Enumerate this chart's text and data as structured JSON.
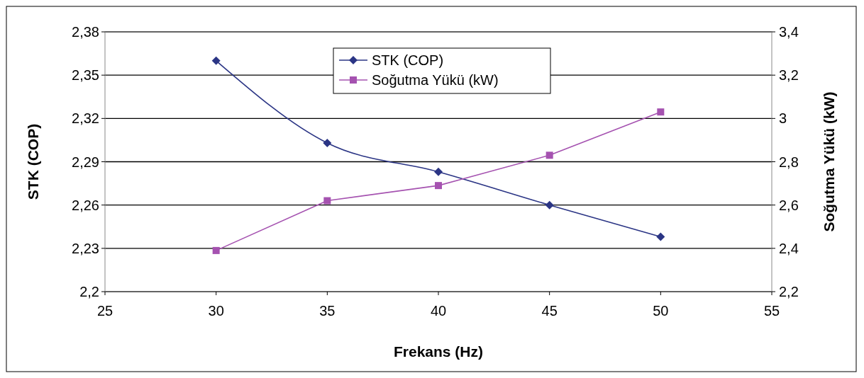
{
  "chart_data": {
    "type": "line",
    "xlabel": "Frekans (Hz)",
    "ylabel": "STK (COP)",
    "y2label": "Soğutma Yükü (kW)",
    "x": [
      30,
      35,
      40,
      45,
      50
    ],
    "series": [
      {
        "name": "STK (COP)",
        "color": "#2b3585",
        "values": [
          2.36,
          2.303,
          2.283,
          2.26,
          2.238
        ],
        "marker": "diamond"
      },
      {
        "name": "Soğutma Yükü (kW)",
        "color": "#a552b0",
        "values": [
          2.39,
          2.62,
          2.69,
          2.83,
          3.03
        ],
        "marker": "square",
        "axis": "y2"
      }
    ],
    "xlim": [
      25,
      55
    ],
    "xticks": [
      25,
      30,
      35,
      40,
      45,
      50,
      55
    ],
    "ylim": [
      2.2,
      2.38
    ],
    "yticks": [
      {
        "value": 2.2,
        "label": "2,2"
      },
      {
        "value": 2.23,
        "label": "2,23"
      },
      {
        "value": 2.26,
        "label": "2,26"
      },
      {
        "value": 2.29,
        "label": "2,29"
      },
      {
        "value": 2.32,
        "label": "2,32"
      },
      {
        "value": 2.35,
        "label": "2,35"
      },
      {
        "value": 2.38,
        "label": "2,38"
      }
    ],
    "y2lim": [
      2.2,
      3.4
    ],
    "y2ticks": [
      {
        "value": 2.2,
        "label": "2,2"
      },
      {
        "value": 2.4,
        "label": "2,4"
      },
      {
        "value": 2.6,
        "label": "2,6"
      },
      {
        "value": 2.8,
        "label": "2,8"
      },
      {
        "value": 3,
        "label": "3"
      },
      {
        "value": 3.2,
        "label": "3,2"
      },
      {
        "value": 3.4,
        "label": "3,4"
      }
    ],
    "grid": "y",
    "legend": "top"
  }
}
